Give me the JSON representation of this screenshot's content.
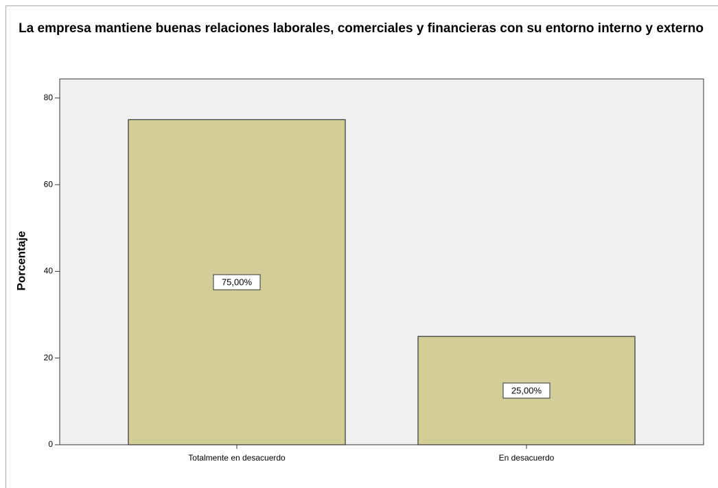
{
  "chart_data": {
    "type": "bar",
    "title": "La empresa mantiene buenas relaciones laborales, comerciales y financieras con su entorno interno y externo",
    "y_label": "Porcentaje",
    "categories": [
      "Totalmente en desacuerdo",
      "En desacuerdo"
    ],
    "values": [
      75,
      25
    ],
    "value_labels": [
      "75,00%",
      "25,00%"
    ],
    "color": "#d3ce98",
    "ylim": [
      0,
      84.4
    ],
    "yticks": [
      0,
      20,
      40,
      60,
      80
    ]
  }
}
